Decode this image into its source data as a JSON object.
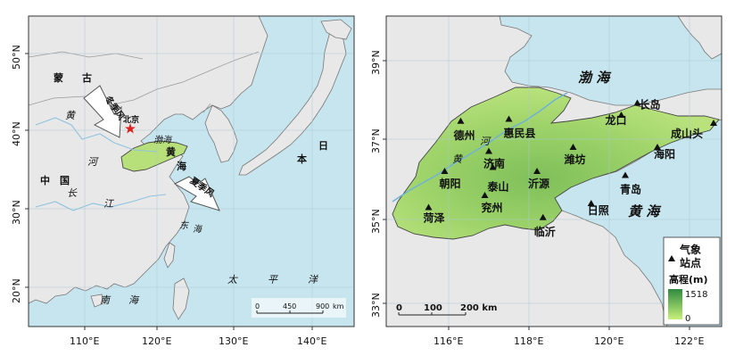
{
  "left_map": {
    "x_ticks": [
      "110°E",
      "120°E",
      "130°E",
      "140°E"
    ],
    "y_ticks": [
      "50°N",
      "40°N",
      "30°N",
      "20°N"
    ],
    "place_labels": {
      "mongolia": "蒙",
      "mongolia2": "古",
      "china": "中",
      "china2": "国",
      "huang": "黄",
      "he": "河",
      "chang": "长",
      "jiang": "江",
      "beijing": "北京",
      "bohai": "渤海",
      "huanghai_h": "黄",
      "huanghai_a": "海",
      "donghai_d": "东",
      "donghai_h": "海",
      "nanhai_n": "南",
      "nanhai_h": "海",
      "pacific_1": "太",
      "pacific_2": "平",
      "pacific_3": "洋",
      "japan_1": "日",
      "japan_2": "本"
    },
    "wind_labels": [
      "冬季风",
      "夏季风"
    ],
    "scale": {
      "labels": [
        "0",
        "450",
        "900",
        "km"
      ]
    }
  },
  "right_map": {
    "x_ticks": [
      "116°E",
      "118°E",
      "120°E",
      "122°E"
    ],
    "y_ticks": [
      "39°N",
      "37°N",
      "35°N",
      "33°N"
    ],
    "seas": {
      "bohai": "渤  海",
      "huanghai": "黄  海"
    },
    "stations": [
      {
        "name": "德州",
        "lon": 116.3,
        "lat": 37.45
      },
      {
        "name": "惠民县",
        "lon": 117.5,
        "lat": 37.5
      },
      {
        "name": "长岛",
        "lon": 120.7,
        "lat": 37.9
      },
      {
        "name": "龙口",
        "lon": 120.3,
        "lat": 37.6
      },
      {
        "name": "成山头",
        "lon": 122.6,
        "lat": 37.4
      },
      {
        "name": "济南",
        "lon": 117.0,
        "lat": 36.7
      },
      {
        "name": "潍坊",
        "lon": 119.1,
        "lat": 36.8
      },
      {
        "name": "朝阳",
        "lon": 115.9,
        "lat": 36.2
      },
      {
        "name": "泰山",
        "lon": 117.1,
        "lat": 36.3
      },
      {
        "name": "沂源",
        "lon": 118.2,
        "lat": 36.2
      },
      {
        "name": "海阳",
        "lon": 121.2,
        "lat": 36.8
      },
      {
        "name": "青岛",
        "lon": 120.4,
        "lat": 36.1
      },
      {
        "name": "菏泽",
        "lon": 115.5,
        "lat": 35.3
      },
      {
        "name": "兖州",
        "lon": 116.9,
        "lat": 35.6
      },
      {
        "name": "临沂",
        "lon": 118.35,
        "lat": 35.05
      },
      {
        "name": "日照",
        "lon": 119.55,
        "lat": 35.4
      }
    ],
    "river_labels": {
      "he": "河",
      "huang": "黄"
    },
    "scale": {
      "labels": [
        "0",
        "100",
        "200 km"
      ]
    },
    "legend": {
      "station_title_1": "气象",
      "station_title_2": "站点",
      "elev_title": "高程(m)",
      "elev_max": "1518",
      "elev_min": "0"
    }
  },
  "colors": {
    "land": "#e8e8e8",
    "sea": "#c7e5ee",
    "shandong_low": "#b8e07a",
    "shandong_high": "#3d8f4f",
    "wind_arrow": "#ffffff",
    "beijing_star": "#e0201b"
  }
}
